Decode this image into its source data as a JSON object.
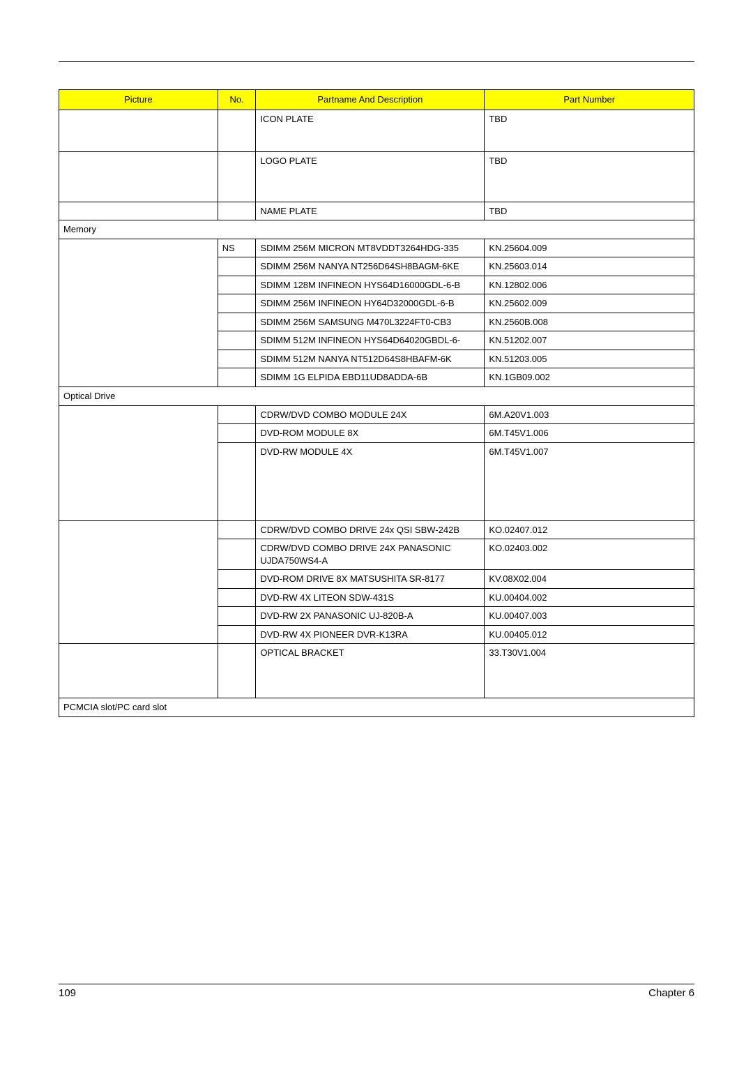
{
  "header_columns": {
    "picture": "Picture",
    "no": "No.",
    "desc": "Partname And Description",
    "part": "Part Number"
  },
  "pre_rows": [
    {
      "picture": "",
      "no": "",
      "desc": "ICON PLATE",
      "part": "TBD",
      "height_class": "cell-pad-tall"
    },
    {
      "picture": "",
      "no": "",
      "desc": "LOGO PLATE",
      "part": "TBD",
      "height_class": "cell-pad-med"
    },
    {
      "picture": "",
      "no": "",
      "desc": "NAME PLATE",
      "part": "TBD",
      "height_class": ""
    }
  ],
  "memory_label": "Memory",
  "memory_rows": [
    {
      "no": "NS",
      "desc": "SDIMM 256M MICRON MT8VDDT3264HDG-335",
      "part": "KN.25604.009"
    },
    {
      "no": "",
      "desc": "SDIMM 256M NANYA NT256D64SH8BAGM-6KE",
      "part": "KN.25603.014"
    },
    {
      "no": "",
      "desc": "SDIMM 128M INFINEON HYS64D16000GDL-6-B",
      "part": "KN.12802.006"
    },
    {
      "no": "",
      "desc": "SDIMM 256M INFINEON HY64D32000GDL-6-B",
      "part": "KN.25602.009"
    },
    {
      "no": "",
      "desc": "SDIMM 256M SAMSUNG M470L3224FT0-CB3",
      "part": "KN.2560B.008"
    },
    {
      "no": "",
      "desc": "SDIMM 512M INFINEON HYS64D64020GBDL-6-",
      "part": "KN.51202.007"
    },
    {
      "no": "",
      "desc": "SDIMM 512M NANYA NT512D64S8HBAFM-6K",
      "part": "KN.51203.005"
    },
    {
      "no": "",
      "desc": "SDIMM 1G ELPIDA EBD11UD8ADDA-6B",
      "part": "KN.1GB09.002"
    }
  ],
  "optical_label": "Optical Drive",
  "optical_rows_a": [
    {
      "desc": "CDRW/DVD COMBO MODULE 24X",
      "part": "6M.A20V1.003",
      "height_class": ""
    },
    {
      "desc": "DVD-ROM MODULE 8X",
      "part": "6M.T45V1.006",
      "height_class": ""
    },
    {
      "desc": "DVD-RW MODULE 4X",
      "part": "6M.T45V1.007",
      "height_class": "cell-pad-large"
    }
  ],
  "optical_rows_b": [
    {
      "desc": "CDRW/DVD COMBO DRIVE 24x QSI SBW-242B",
      "part": "KO.02407.012"
    },
    {
      "desc": "CDRW/DVD COMBO DRIVE 24X PANASONIC UJDA750WS4-A",
      "part": "KO.02403.002"
    },
    {
      "desc": "DVD-ROM DRIVE 8X MATSUSHITA SR-8177",
      "part": "KV.08X02.004"
    },
    {
      "desc": "DVD-RW 4X LITEON SDW-431S",
      "part": "KU.00404.002"
    },
    {
      "desc": "DVD-RW 2X PANASONIC UJ-820B-A",
      "part": "KU.00407.003"
    },
    {
      "desc": "DVD-RW 4X PIONEER DVR-K13RA",
      "part": "KU.00405.012"
    }
  ],
  "optical_bracket": {
    "desc": "OPTICAL BRACKET",
    "part": "33.T30V1.004",
    "height_class": "cell-pad-opt"
  },
  "pcmcia_label": "PCMCIA slot/PC card slot",
  "footer": {
    "page": "109",
    "chapter": "Chapter 6"
  }
}
